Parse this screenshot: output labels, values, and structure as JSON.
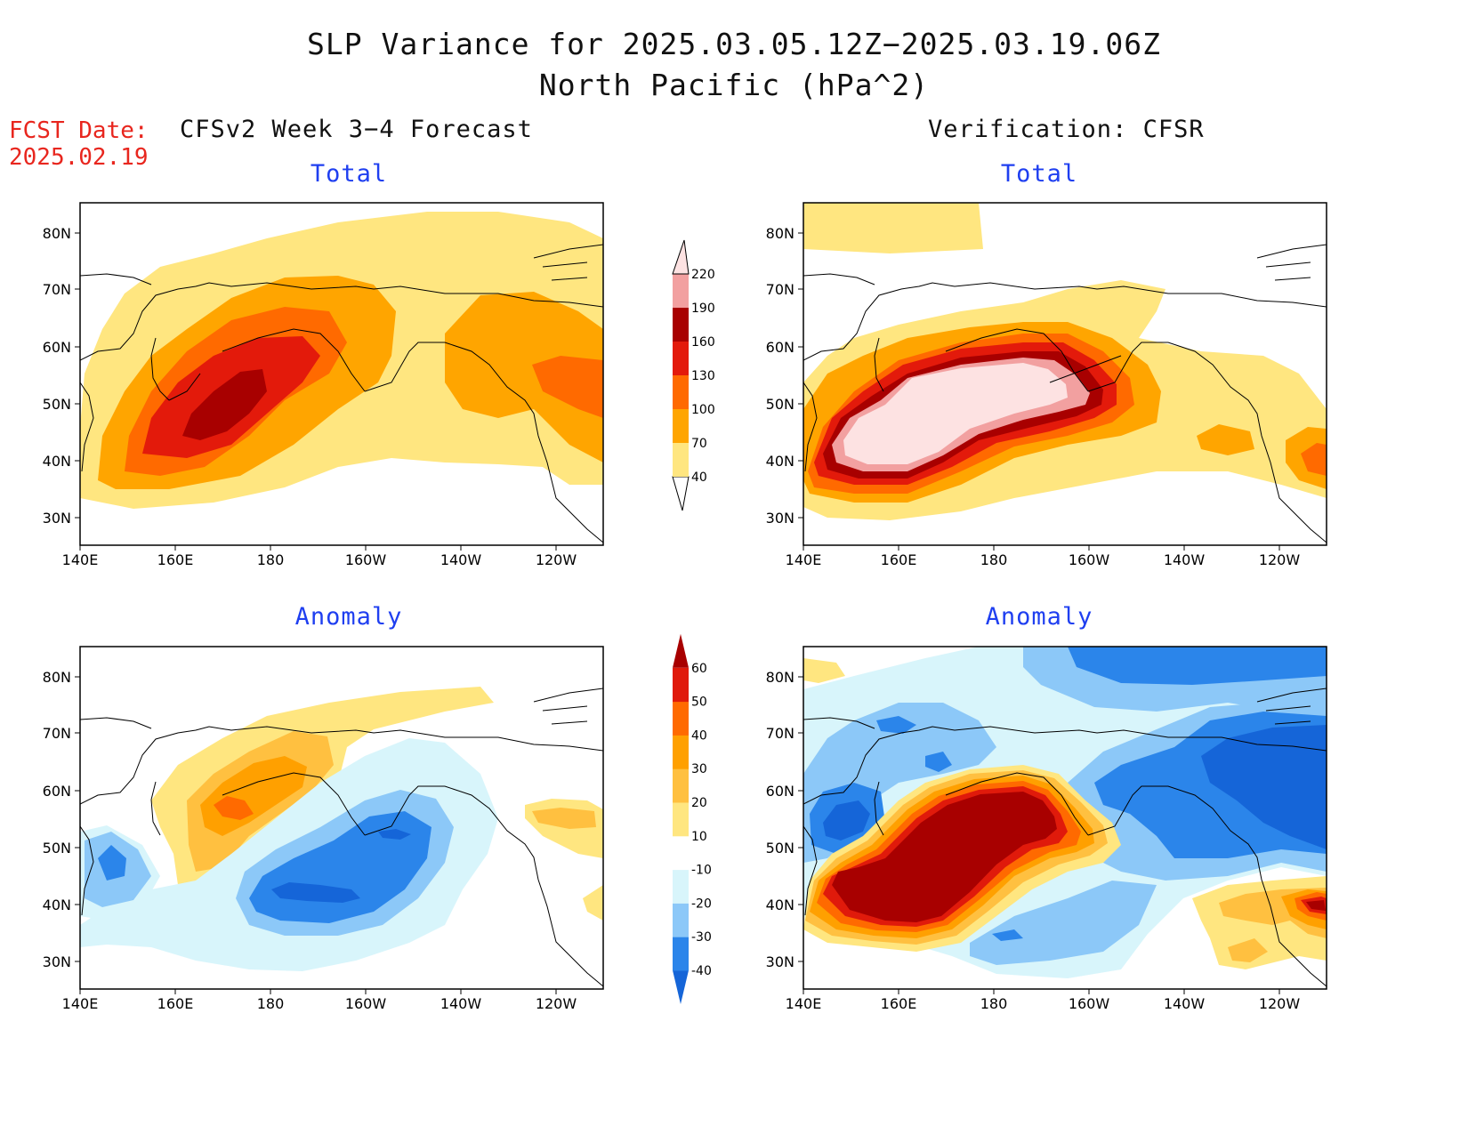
{
  "header": {
    "title_line1": "SLP Variance for 2025.03.05.12Z−2025.03.19.06Z",
    "title_line2": "North Pacific (hPa^2)",
    "fcst_label": "FCST Date:",
    "fcst_date": "2025.02.19",
    "left_subtitle": "CFSv2 Week 3−4 Forecast",
    "right_subtitle": "Verification: CFSR"
  },
  "panels": {
    "top_left_title": "Total",
    "top_right_title": "Total",
    "bottom_left_title": "Anomaly",
    "bottom_right_title": "Anomaly"
  },
  "axes": {
    "lat_labels": [
      "80N",
      "70N",
      "60N",
      "50N",
      "40N",
      "30N"
    ],
    "lon_labels": [
      "140E",
      "160E",
      "180",
      "160W",
      "140W",
      "120W"
    ]
  },
  "colorbars": {
    "total": {
      "levels": [
        "40",
        "70",
        "100",
        "130",
        "160",
        "190",
        "220"
      ],
      "colors": [
        "#ffe680",
        "#ffa500",
        "#ff6a00",
        "#e31a0b",
        "#a80000",
        "#f2a0a0",
        "#fde2e2"
      ]
    },
    "anomaly": {
      "levels": [
        "-40",
        "-30",
        "-20",
        "-10",
        "10",
        "20",
        "30",
        "40",
        "50",
        "60"
      ],
      "colors": [
        "#1565d8",
        "#2b85ea",
        "#8cc8f8",
        "#d8f5fb",
        "#ffffff",
        "#ffe680",
        "#ffc040",
        "#ffa000",
        "#ff6a00",
        "#e01a0b",
        "#a80000"
      ]
    }
  },
  "colors": {
    "title": "#111111",
    "fcst": "#e8261e",
    "panel_title": "#1f3ff0"
  }
}
